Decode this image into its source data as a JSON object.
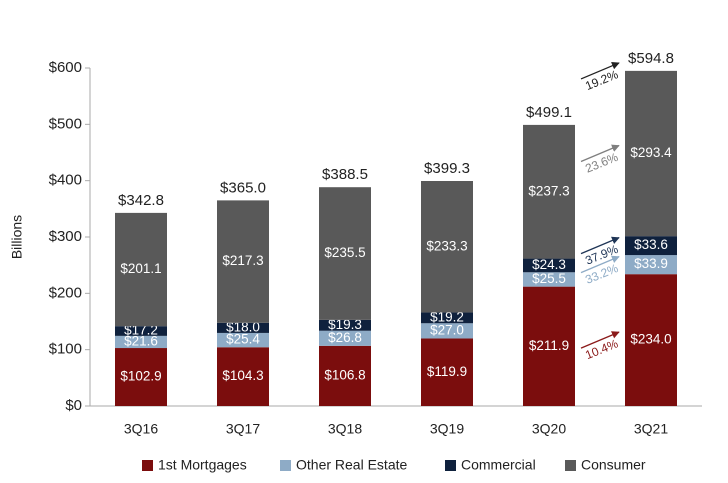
{
  "chart_data": {
    "type": "bar",
    "stacked": true,
    "y_label": "Billions",
    "categories": [
      "3Q16",
      "3Q17",
      "3Q18",
      "3Q19",
      "3Q20",
      "3Q21"
    ],
    "series": [
      {
        "name": "1st Mortgages",
        "color": "#7b0d0d",
        "values": [
          102.9,
          104.3,
          106.8,
          119.9,
          211.9,
          234.0
        ],
        "value_labels": [
          "$102.9",
          "$104.3",
          "$106.8",
          "$119.9",
          "$211.9",
          "$234.0"
        ]
      },
      {
        "name": "Other Real Estate",
        "color": "#8eabc6",
        "values": [
          21.6,
          25.4,
          26.8,
          27.0,
          25.5,
          33.9
        ],
        "value_labels": [
          "$21.6",
          "$25.4",
          "$26.8",
          "$27.0",
          "$25.5",
          "$33.9"
        ]
      },
      {
        "name": "Commercial",
        "color": "#0f213d",
        "values": [
          17.2,
          18.0,
          19.3,
          19.2,
          24.3,
          33.6
        ],
        "value_labels": [
          "$17.2",
          "$18.0",
          "$19.3",
          "$19.2",
          "$24.3",
          "$33.6"
        ]
      },
      {
        "name": "Consumer",
        "color": "#595959",
        "values": [
          201.1,
          217.3,
          235.5,
          233.3,
          237.3,
          293.4
        ],
        "value_labels": [
          "$201.1",
          "$217.3",
          "$235.5",
          "$233.3",
          "$237.3",
          "$293.4"
        ]
      }
    ],
    "totals": [
      342.8,
      365.0,
      388.5,
      399.3,
      499.1,
      594.8
    ],
    "total_labels": [
      "$342.8",
      "$365.0",
      "$388.5",
      "$399.3",
      "$499.1",
      "$594.8"
    ],
    "annotations": [
      {
        "text": "19.2%",
        "color": "#222222"
      },
      {
        "text": "23.6%",
        "series": 3,
        "color": "#7f7f7f"
      },
      {
        "text": "37.9%",
        "series": 2,
        "color": "#1f3556"
      },
      {
        "text": "33.2%",
        "series": 1,
        "color": "#8eabc6"
      },
      {
        "text": "10.4%",
        "series": 0,
        "color": "#8b1a1a"
      }
    ],
    "ylim": [
      0,
      600
    ],
    "yticks": [
      {
        "value": 0,
        "label": "$0"
      },
      {
        "value": 100,
        "label": "$100"
      },
      {
        "value": 200,
        "label": "$200"
      },
      {
        "value": 300,
        "label": "$300"
      },
      {
        "value": 400,
        "label": "$400"
      },
      {
        "value": 500,
        "label": "$500"
      },
      {
        "value": 600,
        "label": "$600"
      }
    ],
    "legend": "bottom"
  }
}
